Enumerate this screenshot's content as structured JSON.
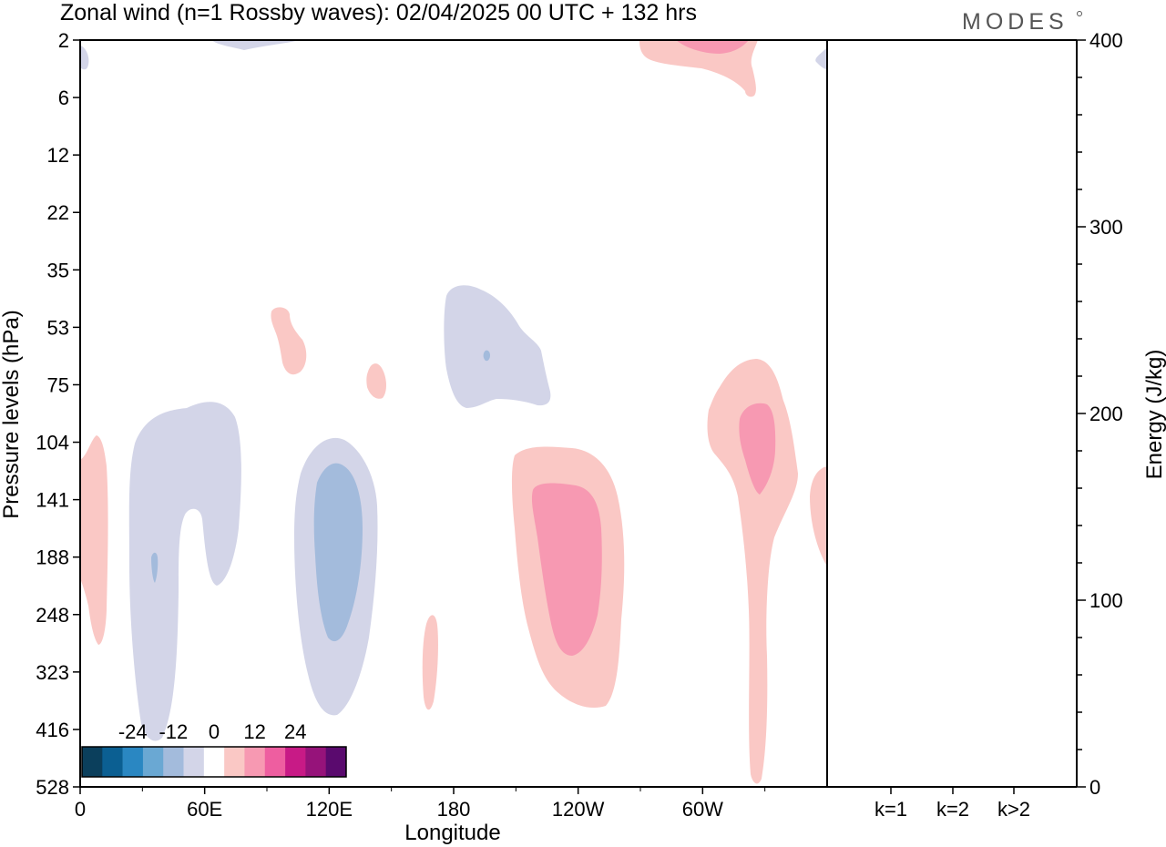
{
  "chart_data": {
    "type": "heatmap",
    "title": "Zonal wind (n=1 Rossby waves):  02/04/2025  00 UTC  + 132 hrs",
    "logo": "MODES",
    "xlabel": "Longitude",
    "ylabel": "Pressure levels (hPa)",
    "ylabel_right": "Energy (J/kg)",
    "x_ticks": [
      "0",
      "60E",
      "120E",
      "180",
      "120W",
      "60W"
    ],
    "y_ticks": [
      "2",
      "6",
      "12",
      "22",
      "35",
      "53",
      "75",
      "104",
      "141",
      "188",
      "248",
      "323",
      "416",
      "528"
    ],
    "energy_axis": {
      "ylim": [
        0,
        400
      ],
      "ticks": [
        "0",
        "100",
        "200",
        "300",
        "400"
      ]
    },
    "energy_bars": {
      "categories": [
        "k=1",
        "k=2",
        "k>2"
      ],
      "values": [
        0,
        0,
        0
      ]
    },
    "colorbar": {
      "labels": [
        "-24",
        "-12",
        "0",
        "12",
        "24"
      ],
      "colors": [
        "#0b3f5c",
        "#0b5f92",
        "#2a87c2",
        "#6aa8d3",
        "#a3bbdc",
        "#d3d5e8",
        "#ffffff",
        "#fac8c5",
        "#f799b2",
        "#ee5ea0",
        "#c81a86",
        "#96137a",
        "#5a0a6e"
      ]
    },
    "fill_colors": {
      "neg1": "#d3d5e8",
      "neg2": "#a3bbdc",
      "pos1": "#fac8c5",
      "pos2": "#f799b2",
      "pos3": "#ee5ea0"
    }
  }
}
